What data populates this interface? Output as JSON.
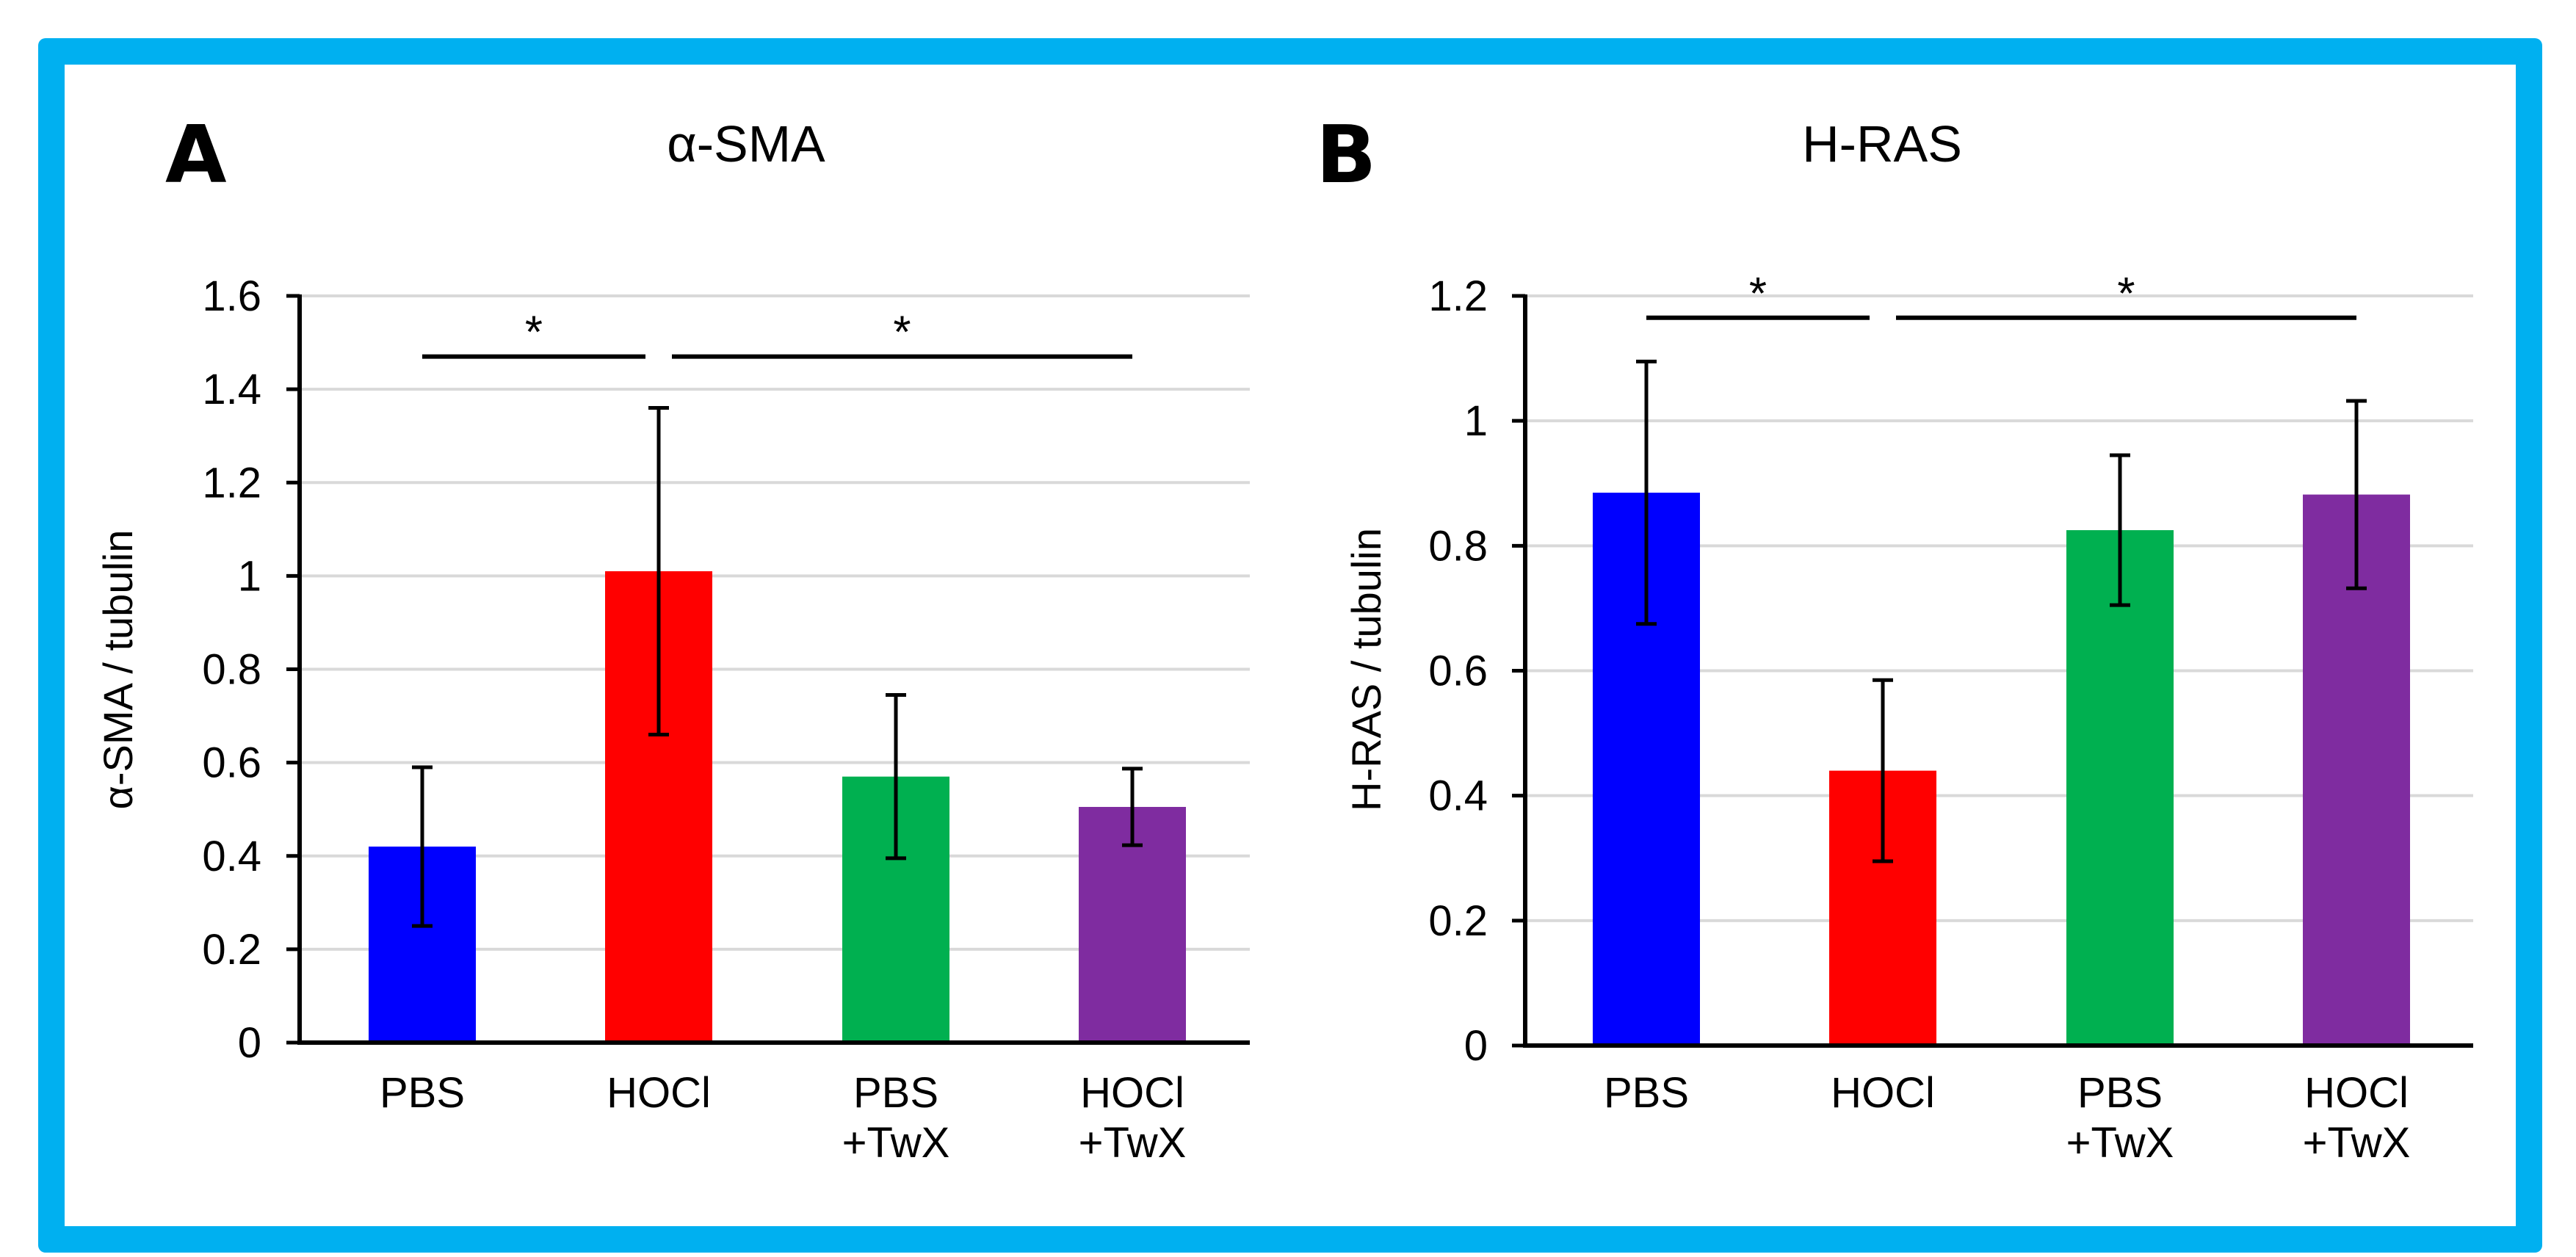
{
  "figure": {
    "frame_color": "#00b0f0"
  },
  "chart_data": [
    {
      "panel": "A",
      "type": "bar",
      "title": "α-SMA",
      "ylabel": "α-SMA / tubulin",
      "xlabel": "",
      "ylim": [
        0,
        1.6
      ],
      "yticks": [
        0,
        0.2,
        0.4,
        0.6,
        0.8,
        1,
        1.2,
        1.4,
        1.6
      ],
      "ytick_labels": [
        "0",
        "0.2",
        "0.4",
        "0.6",
        "0.8",
        "1",
        "1.2",
        "1.4",
        "1.6"
      ],
      "grid": true,
      "categories": [
        [
          "PBS"
        ],
        [
          "HOCl"
        ],
        [
          "PBS",
          "+TwX"
        ],
        [
          "HOCl",
          "+TwX"
        ]
      ],
      "values": [
        0.42,
        1.01,
        0.57,
        0.505
      ],
      "errors": [
        0.17,
        0.35,
        0.175,
        0.082
      ],
      "colors": [
        "#0000ff",
        "#ff0000",
        "#00b050",
        "#7f2ca0"
      ],
      "significance": [
        {
          "from": 0,
          "to": 1,
          "y": 1.47,
          "label": "*"
        },
        {
          "from": 1,
          "to": 3,
          "y": 1.47,
          "label": "*"
        }
      ]
    },
    {
      "panel": "B",
      "type": "bar",
      "title": "H-RAS",
      "ylabel": "H-RAS / tubulin",
      "xlabel": "",
      "ylim": [
        0,
        1.2
      ],
      "yticks": [
        0,
        0.2,
        0.4,
        0.6,
        0.8,
        1,
        1.2
      ],
      "ytick_labels": [
        "0",
        "0.2",
        "0.4",
        "0.6",
        "0.8",
        "1",
        "1.2"
      ],
      "grid": true,
      "categories": [
        [
          "PBS"
        ],
        [
          "HOCl"
        ],
        [
          "PBS",
          "+TwX"
        ],
        [
          "HOCl",
          "+TwX"
        ]
      ],
      "values": [
        0.885,
        0.44,
        0.825,
        0.882
      ],
      "errors": [
        0.21,
        0.145,
        0.12,
        0.15
      ],
      "colors": [
        "#0000ff",
        "#ff0000",
        "#00b050",
        "#7f2ca0"
      ],
      "significance": [
        {
          "from": 0,
          "to": 1,
          "y": 1.165,
          "label": "*"
        },
        {
          "from": 1,
          "to": 3,
          "y": 1.165,
          "label": "*"
        }
      ]
    }
  ]
}
